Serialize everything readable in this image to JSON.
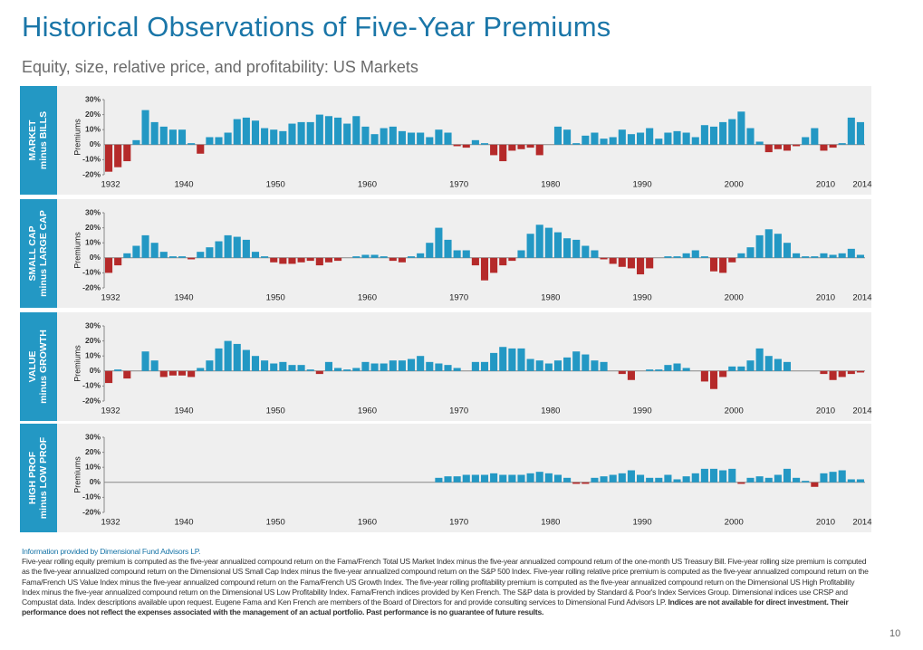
{
  "title": "Historical Observations of Five-Year Premiums",
  "subtitle": "Equity, size, relative price, and profitability: US Markets",
  "source": "Information provided by Dimensional Fund Advisors LP.",
  "footnote": "Five-year rolling equity premium is computed as the five-year annualized compound return on the Fama/French Total US Market Index minus the five-year annualized compound return of the one-month US Treasury Bill. Five-year rolling size premium is computed as the five-year annualized compound return on the Dimensional US Small Cap Index minus the five-year annualized compound return on the S&P 500 Index. Five-year rolling relative price premium is computed as the five-year annualized compound return on the Fama/French US Value Index minus the five-year annualized compound return on the Fama/French US Growth Index. The five-year rolling profitability premium is computed as the five-year annualized compound return on the Dimensional US High Profitability Index minus the five-year annualized compound return on the Dimensional US Low Profitability Index. Fama/French indices provided by Ken French. The S&P data is provided by Standard & Poor's Index Services Group. Dimensional indices use CRSP and Compustat data. Index descriptions available upon request. Eugene Fama and Ken French are members of the Board of Directors for and provide consulting services to Dimensional Fund Advisors LP.",
  "disclaimer": "Indices are not available for direct investment. Their performance does not reflect the expenses associated with the management of an actual portfolio. Past performance is no guarantee of future results.",
  "page_number": "10",
  "chart_data": [
    {
      "type": "bar",
      "panel_label": [
        "MARKET",
        "minus BILLS"
      ],
      "y_label": "Premiums",
      "color": "#2398c4",
      "negative_color": "#b52a2a",
      "categories": [
        "1932",
        null,
        null,
        null,
        null,
        null,
        null,
        null,
        "1940",
        null,
        null,
        null,
        null,
        null,
        null,
        null,
        null,
        null,
        "1950",
        null,
        null,
        null,
        null,
        null,
        null,
        null,
        null,
        null,
        "1960",
        null,
        null,
        null,
        null,
        null,
        null,
        null,
        null,
        null,
        "1970",
        null,
        null,
        null,
        null,
        null,
        null,
        null,
        null,
        null,
        "1980",
        null,
        null,
        null,
        null,
        null,
        null,
        null,
        null,
        null,
        "1990",
        null,
        null,
        null,
        null,
        null,
        null,
        null,
        null,
        null,
        "2000",
        null,
        null,
        null,
        null,
        null,
        null,
        null,
        null,
        null,
        "2010",
        null,
        null,
        null,
        "2014"
      ],
      "values": [
        -18,
        -15,
        -11,
        3,
        23,
        15,
        12,
        10,
        10,
        1,
        -6,
        5,
        5,
        8,
        17,
        18,
        16,
        11,
        10,
        9,
        14,
        15,
        15,
        20,
        19,
        18,
        14,
        19,
        12,
        7,
        11,
        12,
        9,
        8,
        8,
        5,
        10,
        8,
        -1,
        -2,
        3,
        1,
        -7,
        -11,
        -4,
        -3,
        -2,
        -7,
        0,
        12,
        10,
        1,
        6,
        8,
        4,
        5,
        10,
        7,
        8,
        11,
        4,
        8,
        9,
        8,
        5,
        13,
        12,
        15,
        17,
        22,
        11,
        2,
        -5,
        -3,
        -4,
        -1,
        5,
        11,
        -4,
        -2,
        1,
        18,
        15
      ],
      "ylim": [
        -20,
        30
      ],
      "yticks": [
        {
          "value": -20,
          "label": "-20%"
        },
        {
          "value": -10,
          "label": "-10%"
        },
        {
          "value": 0,
          "label": "0%"
        },
        {
          "value": 10,
          "label": "10%"
        },
        {
          "value": 20,
          "label": "20%"
        },
        {
          "value": 30,
          "label": "30%"
        }
      ]
    },
    {
      "type": "bar",
      "panel_label": [
        "SMALL CAP",
        "minus LARGE CAP"
      ],
      "y_label": "Premiums",
      "color": "#2398c4",
      "negative_color": "#b52a2a",
      "categories": [
        "1932",
        null,
        null,
        null,
        null,
        null,
        null,
        null,
        "1940",
        null,
        null,
        null,
        null,
        null,
        null,
        null,
        null,
        null,
        "1950",
        null,
        null,
        null,
        null,
        null,
        null,
        null,
        null,
        null,
        "1960",
        null,
        null,
        null,
        null,
        null,
        null,
        null,
        null,
        null,
        "1970",
        null,
        null,
        null,
        null,
        null,
        null,
        null,
        null,
        null,
        "1980",
        null,
        null,
        null,
        null,
        null,
        null,
        null,
        null,
        null,
        "1990",
        null,
        null,
        null,
        null,
        null,
        null,
        null,
        null,
        null,
        "2000",
        null,
        null,
        null,
        null,
        null,
        null,
        null,
        null,
        null,
        "2010",
        null,
        null,
        null,
        "2014"
      ],
      "values": [
        -10,
        -5,
        3,
        8,
        15,
        10,
        4,
        1,
        1,
        -1,
        4,
        7,
        11,
        15,
        14,
        12,
        4,
        1,
        -3,
        -4,
        -4,
        -3,
        -2,
        -5,
        -3,
        -2,
        0,
        1,
        2,
        2,
        1,
        -2,
        -3,
        1,
        3,
        10,
        20,
        12,
        5,
        5,
        -5,
        -15,
        -10,
        -5,
        -2,
        5,
        16,
        22,
        20,
        17,
        13,
        12,
        8,
        5,
        -1,
        -4,
        -6,
        -7,
        -11,
        -7,
        0,
        1,
        1,
        3,
        5,
        1,
        -9,
        -10,
        -3,
        3,
        7,
        15,
        19,
        16,
        10,
        3,
        1,
        1,
        3,
        2,
        3,
        6,
        2
      ],
      "ylim": [
        -20,
        30
      ],
      "yticks": [
        {
          "value": -20,
          "label": "-20%"
        },
        {
          "value": -10,
          "label": "-10%"
        },
        {
          "value": 0,
          "label": "0%"
        },
        {
          "value": 10,
          "label": "10%"
        },
        {
          "value": 20,
          "label": "20%"
        },
        {
          "value": 30,
          "label": "30%"
        }
      ]
    },
    {
      "type": "bar",
      "panel_label": [
        "VALUE",
        "minus GROWTH"
      ],
      "y_label": "Premiums",
      "color": "#2398c4",
      "negative_color": "#b52a2a",
      "categories": [
        "1932",
        null,
        null,
        null,
        null,
        null,
        null,
        null,
        "1940",
        null,
        null,
        null,
        null,
        null,
        null,
        null,
        null,
        null,
        "1950",
        null,
        null,
        null,
        null,
        null,
        null,
        null,
        null,
        null,
        "1960",
        null,
        null,
        null,
        null,
        null,
        null,
        null,
        null,
        null,
        "1970",
        null,
        null,
        null,
        null,
        null,
        null,
        null,
        null,
        null,
        "1980",
        null,
        null,
        null,
        null,
        null,
        null,
        null,
        null,
        null,
        "1990",
        null,
        null,
        null,
        null,
        null,
        null,
        null,
        null,
        null,
        "2000",
        null,
        null,
        null,
        null,
        null,
        null,
        null,
        null,
        null,
        "2010",
        null,
        null,
        null,
        "2014"
      ],
      "values": [
        -8,
        1,
        -5,
        0,
        13,
        7,
        -4,
        -3,
        -3,
        -4,
        2,
        7,
        15,
        20,
        18,
        14,
        10,
        7,
        5,
        6,
        4,
        4,
        1,
        -2,
        6,
        2,
        1,
        2,
        6,
        5,
        5,
        7,
        7,
        8,
        10,
        6,
        5,
        4,
        2,
        0,
        6,
        6,
        12,
        16,
        15,
        15,
        8,
        7,
        5,
        7,
        9,
        13,
        11,
        7,
        6,
        0,
        -2,
        -6,
        0,
        1,
        1,
        4,
        5,
        2,
        0,
        -7,
        -12,
        -4,
        3,
        3,
        7,
        15,
        10,
        8,
        6,
        0,
        0,
        0,
        -2,
        -6,
        -4,
        -2,
        -1
      ],
      "ylim": [
        -20,
        30
      ],
      "yticks": [
        {
          "value": -20,
          "label": "-20%"
        },
        {
          "value": -10,
          "label": "-10%"
        },
        {
          "value": 0,
          "label": "0%"
        },
        {
          "value": 10,
          "label": "10%"
        },
        {
          "value": 20,
          "label": "20%"
        },
        {
          "value": 30,
          "label": "30%"
        }
      ]
    },
    {
      "type": "bar",
      "panel_label": [
        "HIGH PROF",
        "minus LOW PROF"
      ],
      "y_label": "Premiums",
      "color": "#2398c4",
      "negative_color": "#b52a2a",
      "categories": [
        "1932",
        null,
        null,
        null,
        null,
        null,
        null,
        null,
        "1940",
        null,
        null,
        null,
        null,
        null,
        null,
        null,
        null,
        null,
        "1950",
        null,
        null,
        null,
        null,
        null,
        null,
        null,
        null,
        null,
        "1960",
        null,
        null,
        null,
        null,
        null,
        null,
        null,
        null,
        null,
        "1970",
        null,
        null,
        null,
        null,
        null,
        null,
        null,
        null,
        null,
        "1980",
        null,
        null,
        null,
        null,
        null,
        null,
        null,
        null,
        null,
        "1990",
        null,
        null,
        null,
        null,
        null,
        null,
        null,
        null,
        null,
        "2000",
        null,
        null,
        null,
        null,
        null,
        null,
        null,
        null,
        null,
        "2010",
        null,
        null,
        null,
        "2014"
      ],
      "values": [
        null,
        null,
        null,
        null,
        null,
        null,
        null,
        null,
        null,
        null,
        null,
        null,
        null,
        null,
        null,
        null,
        null,
        null,
        null,
        null,
        null,
        null,
        null,
        null,
        null,
        null,
        null,
        null,
        null,
        null,
        null,
        null,
        null,
        null,
        null,
        null,
        3,
        4,
        4,
        5,
        5,
        5,
        6,
        5,
        5,
        5,
        6,
        7,
        6,
        5,
        3,
        -1,
        -1,
        3,
        4,
        5,
        6,
        8,
        5,
        3,
        3,
        5,
        2,
        4,
        6,
        9,
        9,
        8,
        9,
        -1,
        3,
        4,
        3,
        5,
        9,
        3,
        1,
        -3,
        6,
        7,
        8,
        2,
        2
      ],
      "ylim": [
        -20,
        30
      ],
      "yticks": [
        {
          "value": -20,
          "label": "-20%"
        },
        {
          "value": -10,
          "label": "-10%"
        },
        {
          "value": 0,
          "label": "0%"
        },
        {
          "value": 10,
          "label": "10%"
        },
        {
          "value": 20,
          "label": "20%"
        },
        {
          "value": 30,
          "label": "30%"
        }
      ]
    }
  ]
}
